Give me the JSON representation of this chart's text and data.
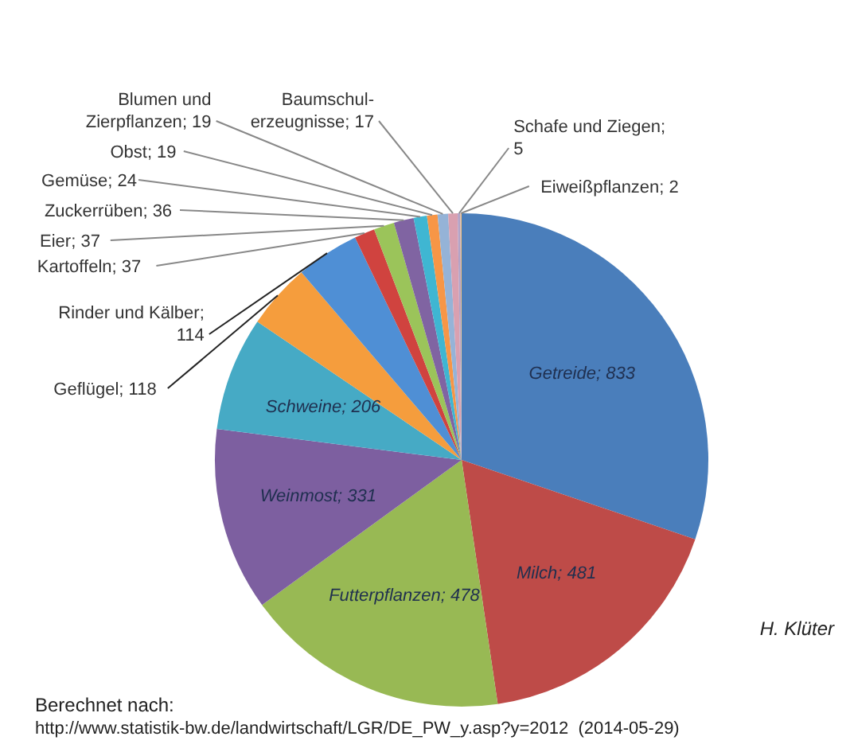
{
  "chart_data": {
    "type": "pie",
    "categories": [
      "Getreide",
      "Milch",
      "Futterpflanzen",
      "Weinmost",
      "Schweine",
      "Geflügel",
      "Rinder und Kälber",
      "Kartoffeln",
      "Eier",
      "Zuckerrüben",
      "Gemüse",
      "Obst",
      "Blumen und Zierpflanzen",
      "Baumschul-erzeugnisse",
      "Schafe und Ziegen",
      "Eiweißpflanzen"
    ],
    "values": [
      833,
      481,
      478,
      331,
      206,
      118,
      114,
      37,
      37,
      36,
      24,
      19,
      19,
      17,
      5,
      2
    ],
    "colors": [
      "#4a7ebb",
      "#be4b48",
      "#98b954",
      "#7d5fa0",
      "#46aac5",
      "#f59d3d",
      "#4f8fd5",
      "#d0433f",
      "#9bc45a",
      "#8064a2",
      "#3fb6d2",
      "#f79646",
      "#95b3d7",
      "#d9a0b0",
      "#b3a2c7",
      "#f0c080"
    ],
    "value_labels": [
      "; 833",
      "; 481",
      "; 478",
      "; 331",
      "; 206",
      "; 118",
      "; 114",
      "; 37",
      "; 37",
      "; 36",
      "; 24",
      "; 19",
      "; 19",
      "; 17",
      "; 5",
      "; 2"
    ],
    "legend": false,
    "annotations": [
      "H. Klüter",
      "Berechnet nach:",
      "http://www.statistik-bw.de/landwirtschaft/LGR/DE_PW_y.asp?y=2012  (2014-05-29)"
    ]
  }
}
